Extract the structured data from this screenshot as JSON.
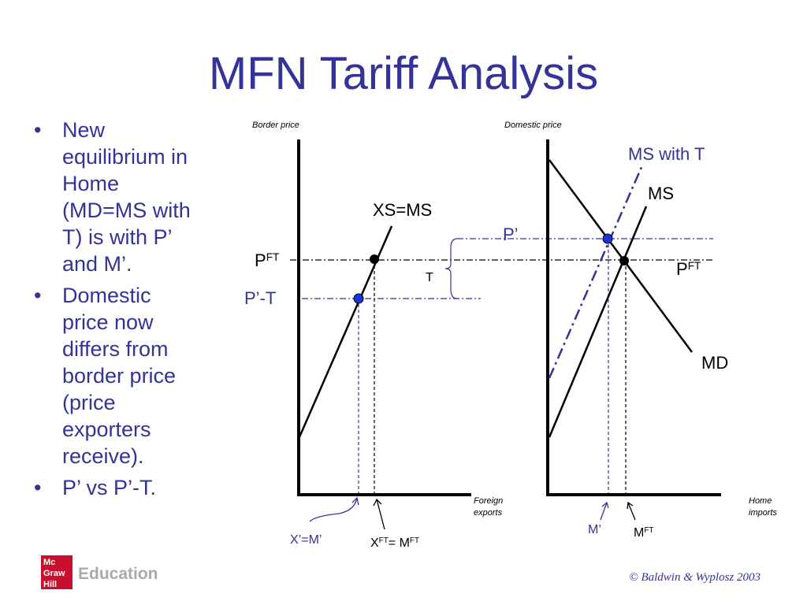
{
  "header": {
    "title": "MFN Tariff Analysis"
  },
  "bullets": [
    "New equilibrium in Home (MD=MS with T) is with P’ and M’.",
    "Domestic price now differs from border price (price exporters receive).",
    "P’ vs P’-T."
  ],
  "diagram": {
    "left": {
      "y_axis": "Border price",
      "x_axis": [
        "Foreign",
        "exports"
      ],
      "curve": "XS=MS",
      "price_ft": [
        {
          "text": "P",
          "sup": false
        },
        {
          "text": "FT",
          "sup": true
        }
      ],
      "price_low": "P’-T",
      "tariff": "T",
      "qty_new": "X’=M’",
      "qty_ft": [
        {
          "text": "X",
          "sup": false
        },
        {
          "text": "FT",
          "sup": true
        },
        {
          "text": "= M",
          "sup": false
        },
        {
          "text": "FT",
          "sup": true
        }
      ]
    },
    "right": {
      "y_axis": "Domestic price",
      "x_axis": [
        "Home",
        "imports"
      ],
      "supply_tariff": "MS with T",
      "supply": "MS",
      "demand": "MD",
      "price_new": "P’",
      "price_ft": [
        {
          "text": "P",
          "sup": false
        },
        {
          "text": "FT",
          "sup": true
        }
      ],
      "qty_new": "M’",
      "qty_ft": [
        {
          "text": "M",
          "sup": false
        },
        {
          "text": "FT",
          "sup": true
        }
      ]
    }
  },
  "footer": {
    "logo": [
      "Mc",
      "Graw",
      "Hill"
    ],
    "brand": "Education",
    "copyright": "© Baldwin & Wyplosz 2003"
  }
}
